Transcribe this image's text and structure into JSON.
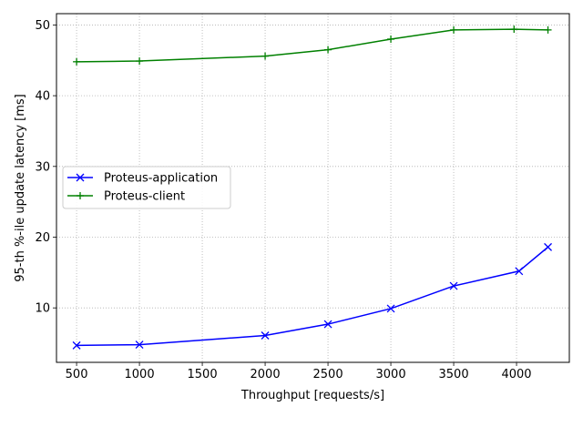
{
  "chart_data": {
    "type": "line",
    "title": "",
    "xlabel": "Throughput [requests/s]",
    "ylabel": "95-th %-ile update latency [ms]",
    "xlim": [
      340,
      4420
    ],
    "ylim": [
      2.3,
      51.6
    ],
    "xticks": [
      500,
      1000,
      1500,
      2000,
      2500,
      3000,
      3500,
      4000
    ],
    "yticks": [
      10,
      20,
      30,
      40,
      50
    ],
    "grid": true,
    "legend_position": "center-left",
    "series": [
      {
        "name": "Proteus-application",
        "color": "#0000ff",
        "marker": "x",
        "x": [
          500,
          1000,
          2000,
          2500,
          3000,
          3500,
          4020,
          4250
        ],
        "y": [
          4.7,
          4.8,
          6.1,
          7.7,
          9.9,
          13.1,
          15.2,
          18.6
        ]
      },
      {
        "name": "Proteus-client",
        "color": "#008000",
        "marker": "+",
        "x": [
          500,
          1000,
          2000,
          2500,
          3000,
          3500,
          3980,
          4250
        ],
        "y": [
          44.8,
          44.9,
          45.6,
          46.5,
          48.0,
          49.3,
          49.4,
          49.3
        ]
      }
    ]
  }
}
